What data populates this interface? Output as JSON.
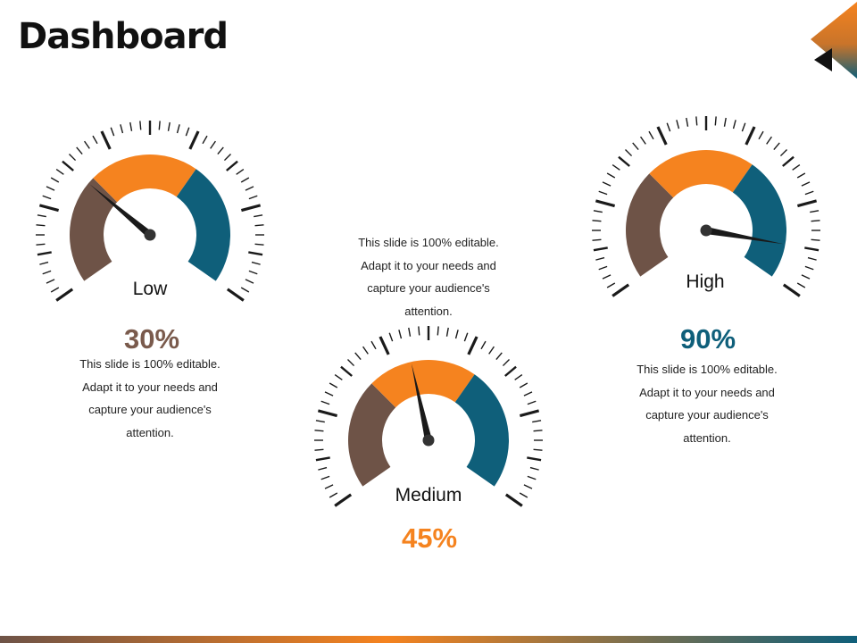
{
  "slide": {
    "title": "Dashboard"
  },
  "colors": {
    "brown": "#6e5347",
    "orange": "#f5831f",
    "teal": "#0f5f7a",
    "tick": "#1a1a1a",
    "needle": "#1a1a1a"
  },
  "gauges": [
    {
      "label": "Low",
      "percent_text": "30%",
      "value": 30,
      "percent_color": "#7a5a4c",
      "description_lines": [
        "This slide is 100% editable.",
        "Adapt it to your needs and",
        "capture your audience's",
        "attention."
      ]
    },
    {
      "label": "Medium",
      "percent_text": "45%",
      "value": 45,
      "percent_color": "#f5831f",
      "description_lines": [
        "This slide is 100% editable.",
        "Adapt it to your needs and",
        "capture your audience's",
        "attention."
      ]
    },
    {
      "label": "High",
      "percent_text": "90%",
      "value": 90,
      "percent_color": "#0f5f7a",
      "description_lines": [
        "This slide is 100% editable.",
        "Adapt it to your needs and",
        "capture your audience's",
        "attention."
      ]
    }
  ]
}
